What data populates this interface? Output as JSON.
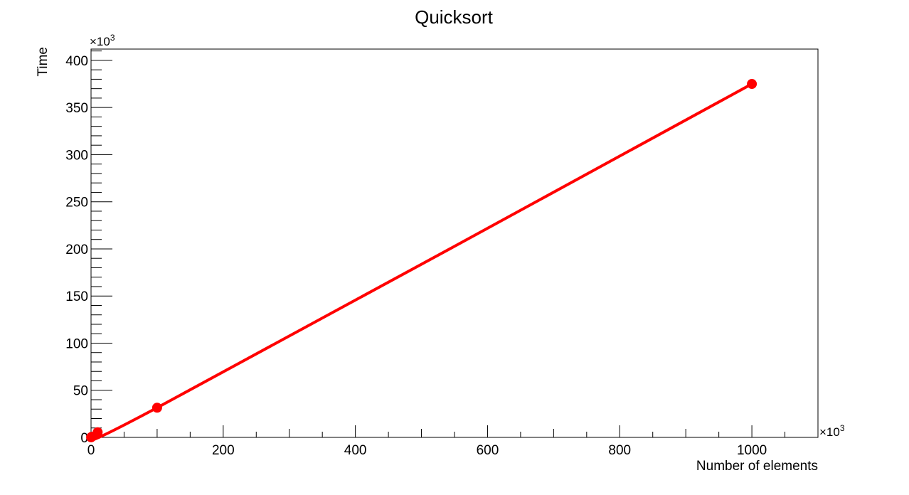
{
  "chart_data": {
    "type": "line",
    "title": "Quicksort",
    "xlabel": "Number of elements",
    "ylabel": "Time",
    "x_exponent_label": "×10",
    "x_exponent_sup": "3",
    "y_exponent_label": "×10",
    "y_exponent_sup": "3",
    "xlim": [
      0,
      1100000
    ],
    "ylim": [
      0,
      412000
    ],
    "x_ticks": [
      0,
      200000,
      400000,
      600000,
      800000,
      1000000
    ],
    "x_tick_labels": [
      "0",
      "200",
      "400",
      "600",
      "800",
      "1000"
    ],
    "y_ticks": [
      0,
      50000,
      100000,
      150000,
      200000,
      250000,
      300000,
      350000,
      400000
    ],
    "y_tick_labels": [
      "0",
      "50",
      "100",
      "150",
      "200",
      "250",
      "300",
      "350",
      "400"
    ],
    "grid": false,
    "series": [
      {
        "color": "#ff0000",
        "x": [
          100,
          1000,
          10000,
          100000,
          1000000
        ],
        "y": [
          100,
          700,
          5500,
          31500,
          375000
        ]
      }
    ]
  }
}
